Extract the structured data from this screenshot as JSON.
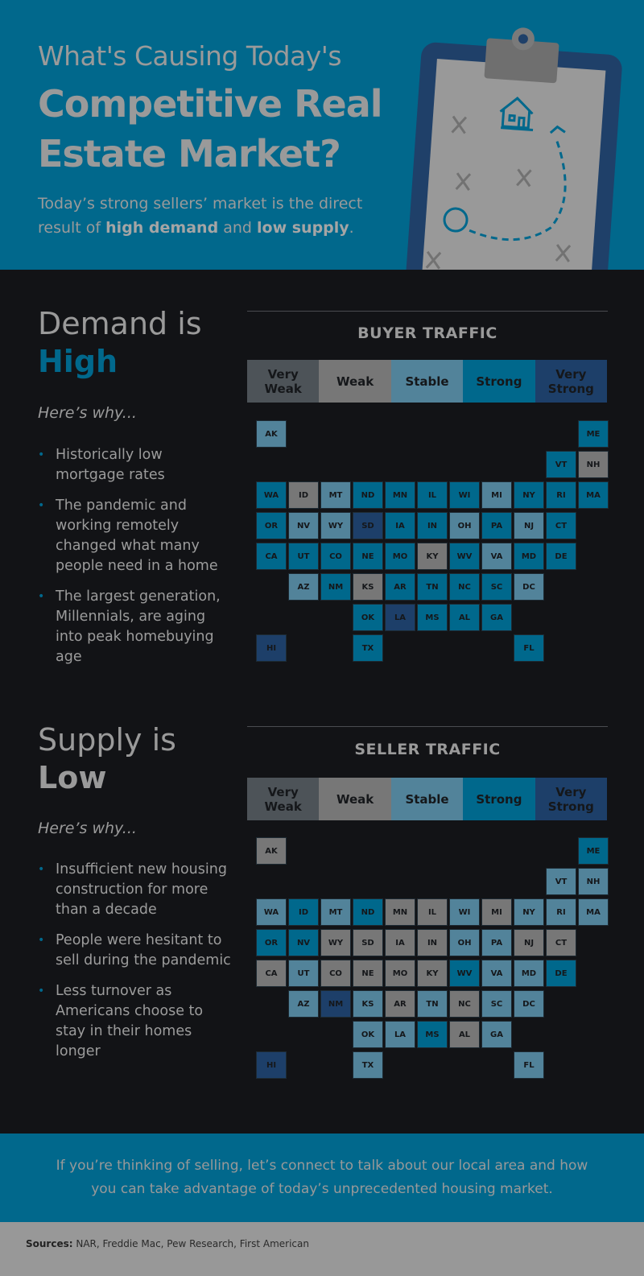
{
  "header": {
    "title_line1": "What's Causing Today's",
    "title_line2": "Competitive Real",
    "title_line3": "Estate Market?",
    "subtitle_pre": "Today’s strong sellers’ market is the direct result of ",
    "subtitle_b1": "high demand",
    "subtitle_mid": " and ",
    "subtitle_b2": "low supply",
    "subtitle_end": "."
  },
  "legend_colors": {
    "Very Weak": "#4d5358",
    "Weak": "#777777",
    "Stable": "#52839a",
    "Strong": "#00688c",
    "Very Strong": "#1d3f69"
  },
  "legend_labels": [
    "Very Weak",
    "Weak",
    "Stable",
    "Strong",
    "Very Strong"
  ],
  "demand": {
    "heading": "Demand is",
    "emphasis": "High",
    "why": "Here’s why...",
    "bullets": [
      "Historically low mortgage rates",
      "The pandemic and working remotely changed what many people need in a home",
      "The largest generation, Millennials, are aging into peak homebuying age"
    ],
    "map_title": "BUYER TRAFFIC",
    "states": {
      "WA": "Strong",
      "OR": "Strong",
      "CA": "Strong",
      "ID": "Weak",
      "NV": "Stable",
      "MT": "Stable",
      "WY": "Stable",
      "UT": "Strong",
      "AZ": "Stable",
      "CO": "Strong",
      "NM": "Strong",
      "ND": "Strong",
      "SD": "Very Strong",
      "NE": "Strong",
      "KS": "Weak",
      "OK": "Strong",
      "TX": "Strong",
      "MN": "Strong",
      "IA": "Strong",
      "MO": "Strong",
      "AR": "Strong",
      "LA": "Very Strong",
      "WI": "Strong",
      "IL": "Strong",
      "MI": "Stable",
      "IN": "Strong",
      "OH": "Stable",
      "KY": "Weak",
      "TN": "Strong",
      "MS": "Strong",
      "AL": "Strong",
      "GA": "Strong",
      "FL": "Strong",
      "SC": "Strong",
      "NC": "Strong",
      "VA": "Stable",
      "WV": "Strong",
      "PA": "Strong",
      "NY": "Strong",
      "VT": "Strong",
      "NH": "Weak",
      "ME": "Strong",
      "MA": "Strong",
      "RI": "Strong",
      "CT": "Strong",
      "NJ": "Stable",
      "DE": "Strong",
      "MD": "Strong",
      "DC": "Stable",
      "AK": "Stable",
      "HI": "Very Strong"
    }
  },
  "supply": {
    "heading": "Supply is",
    "emphasis": "Low",
    "why": "Here’s why...",
    "bullets": [
      "Insufficient new housing construction for more than a decade",
      "People were hesitant to sell during the pandemic",
      "Less turnover as Americans choose to stay in their homes longer"
    ],
    "map_title": "SELLER TRAFFIC",
    "states": {
      "WA": "Stable",
      "OR": "Strong",
      "CA": "Weak",
      "ID": "Strong",
      "NV": "Strong",
      "MT": "Stable",
      "WY": "Weak",
      "UT": "Stable",
      "AZ": "Stable",
      "CO": "Weak",
      "NM": "Very Strong",
      "ND": "Strong",
      "SD": "Weak",
      "NE": "Weak",
      "KS": "Stable",
      "OK": "Stable",
      "TX": "Stable",
      "MN": "Weak",
      "IA": "Weak",
      "MO": "Weak",
      "AR": "Weak",
      "LA": "Stable",
      "WI": "Stable",
      "IL": "Weak",
      "MI": "Weak",
      "IN": "Weak",
      "OH": "Stable",
      "KY": "Weak",
      "TN": "Stable",
      "MS": "Strong",
      "AL": "Weak",
      "GA": "Stable",
      "FL": "Stable",
      "SC": "Stable",
      "NC": "Weak",
      "VA": "Stable",
      "WV": "Strong",
      "PA": "Stable",
      "NY": "Stable",
      "VT": "Stable",
      "NH": "Stable",
      "ME": "Strong",
      "MA": "Stable",
      "RI": "Stable",
      "CT": "Weak",
      "NJ": "Weak",
      "DE": "Strong",
      "MD": "Stable",
      "DC": "Stable",
      "AK": "Weak",
      "HI": "Very Strong"
    }
  },
  "cta": "If you’re thinking of selling, let’s connect to talk about our local area and how you can take advantage of today’s unprecedented housing market.",
  "sources_label": "Sources:",
  "sources": " NAR, Freddie Mac, Pew Research, First American"
}
